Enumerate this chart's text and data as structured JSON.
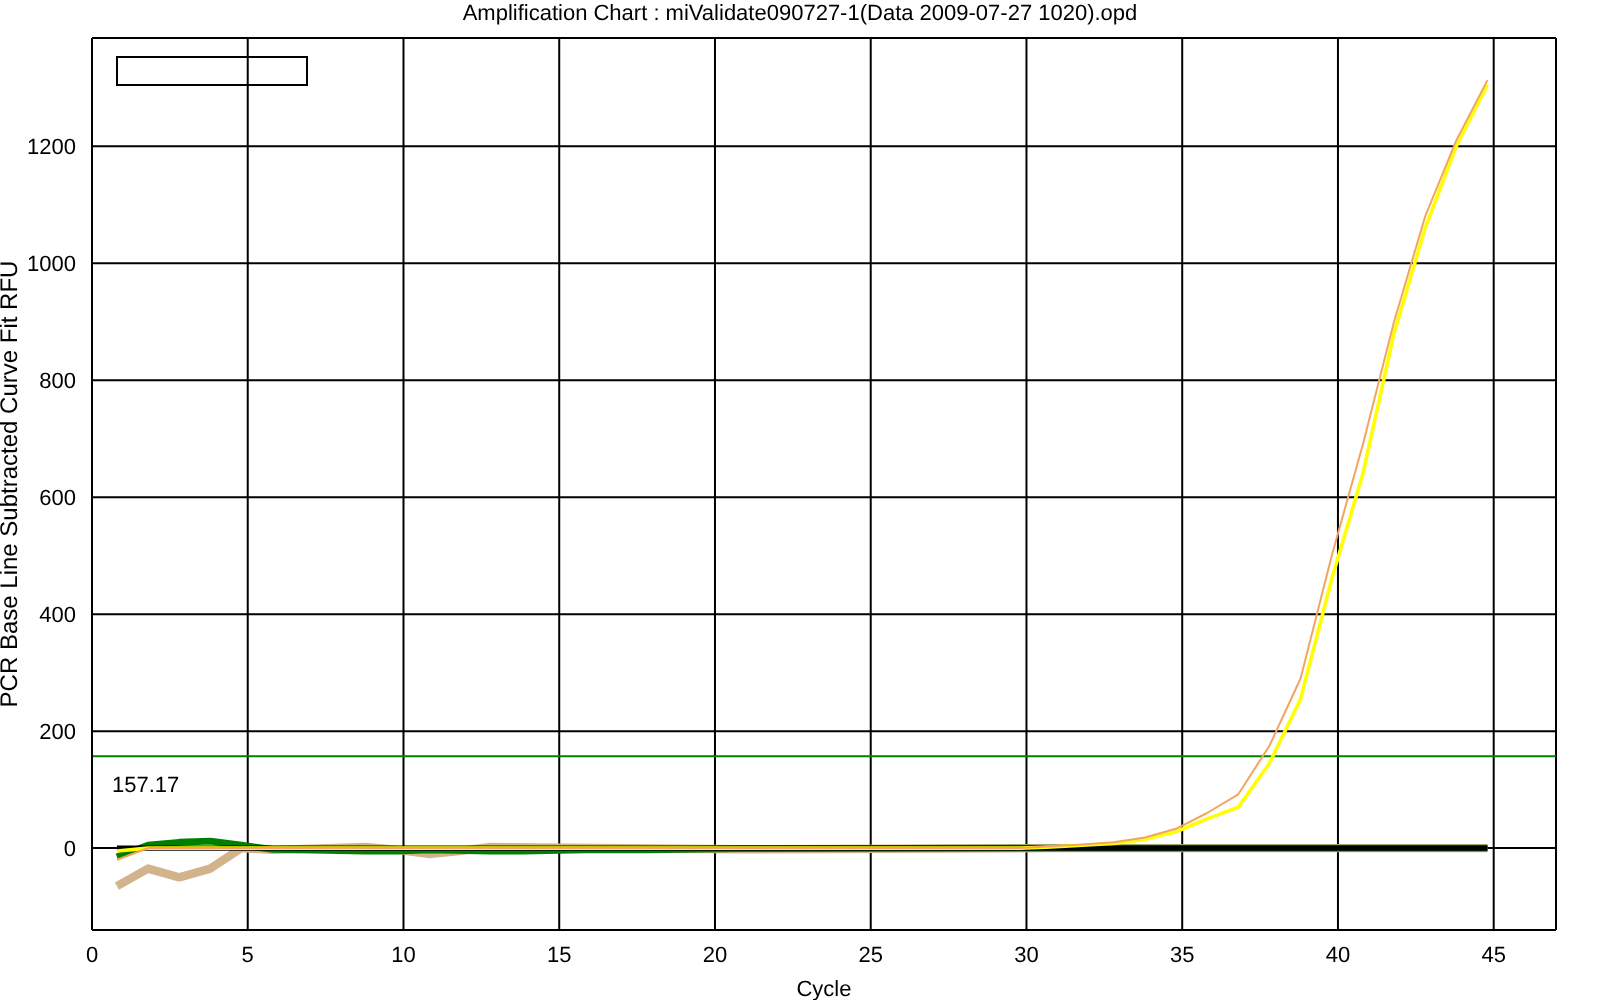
{
  "chart_data": {
    "type": "line",
    "title": "Amplification Chart : miValidate090727-1(Data 2009-07-27 1020).opd",
    "xlabel": "Cycle",
    "ylabel": "PCR Base Line Subtracted Curve Fit RFU",
    "xlim": [
      0,
      47
    ],
    "xticks": [
      0,
      5,
      10,
      15,
      20,
      25,
      30,
      35,
      40,
      45
    ],
    "ylim": [
      -140,
      1385
    ],
    "yticks": [
      0,
      200,
      400,
      600,
      800,
      1000,
      1200
    ],
    "grid": true,
    "marker": "none",
    "line_style": "solid",
    "ref_lines": [
      {
        "axis": "y",
        "value": 157.17,
        "label": "157.17",
        "color": "#008000"
      }
    ],
    "series": [
      {
        "color": "#d2b48c",
        "x": [
          0.8,
          1.8,
          2.8,
          3.8,
          4.8,
          5.8,
          8.8,
          9.8,
          10.8,
          11.8,
          12.8,
          20.8,
          30.8,
          44.8
        ],
        "values": [
          -65,
          -35,
          -50,
          -35,
          0,
          -3,
          2,
          -3,
          -10,
          -5,
          2,
          -2,
          0,
          0
        ]
      },
      {
        "color": "#008000",
        "x": [
          0.8,
          1.8,
          2.8,
          3.8,
          4.8,
          5.8,
          8.8,
          9.8,
          10.8,
          12.8,
          13.8,
          15.8,
          17.8,
          20.8,
          30.8,
          44.8
        ],
        "values": [
          -15,
          5,
          10,
          12,
          5,
          -2,
          -5,
          -5,
          -3,
          -5,
          -5,
          -3,
          -3,
          -1,
          0,
          0
        ]
      },
      {
        "color": "#000000",
        "x": [
          0.8,
          10.8,
          20.8,
          30.8,
          44.8
        ],
        "values": [
          0,
          0,
          0,
          0,
          0
        ]
      },
      {
        "color": "#ffff00",
        "x": [
          0.8,
          1.8,
          4.8,
          10.8,
          20.8,
          29.8,
          30.8,
          31.8,
          32.8,
          33.8,
          34.8,
          35.8,
          36.8,
          37.8,
          38.8,
          39.8,
          40.8,
          41.8,
          42.8,
          43.8,
          44.8
        ],
        "values": [
          -5,
          0,
          0,
          0,
          0,
          0,
          2,
          5,
          8,
          15,
          28,
          50,
          70,
          145,
          255,
          460,
          640,
          880,
          1060,
          1200,
          1305
        ]
      },
      {
        "color": "#f4a460",
        "x": [
          0.8,
          1.8,
          4.8,
          10.8,
          20.8,
          29.8,
          30.8,
          31.8,
          32.8,
          33.8,
          34.8,
          35.8,
          36.8,
          37.8,
          38.8,
          39.8,
          40.8,
          41.8,
          42.8,
          43.8,
          44.8
        ],
        "values": [
          -20,
          0,
          0,
          0,
          0,
          0,
          3,
          6,
          10,
          18,
          33,
          60,
          92,
          175,
          290,
          500,
          690,
          900,
          1080,
          1210,
          1313
        ]
      }
    ]
  }
}
